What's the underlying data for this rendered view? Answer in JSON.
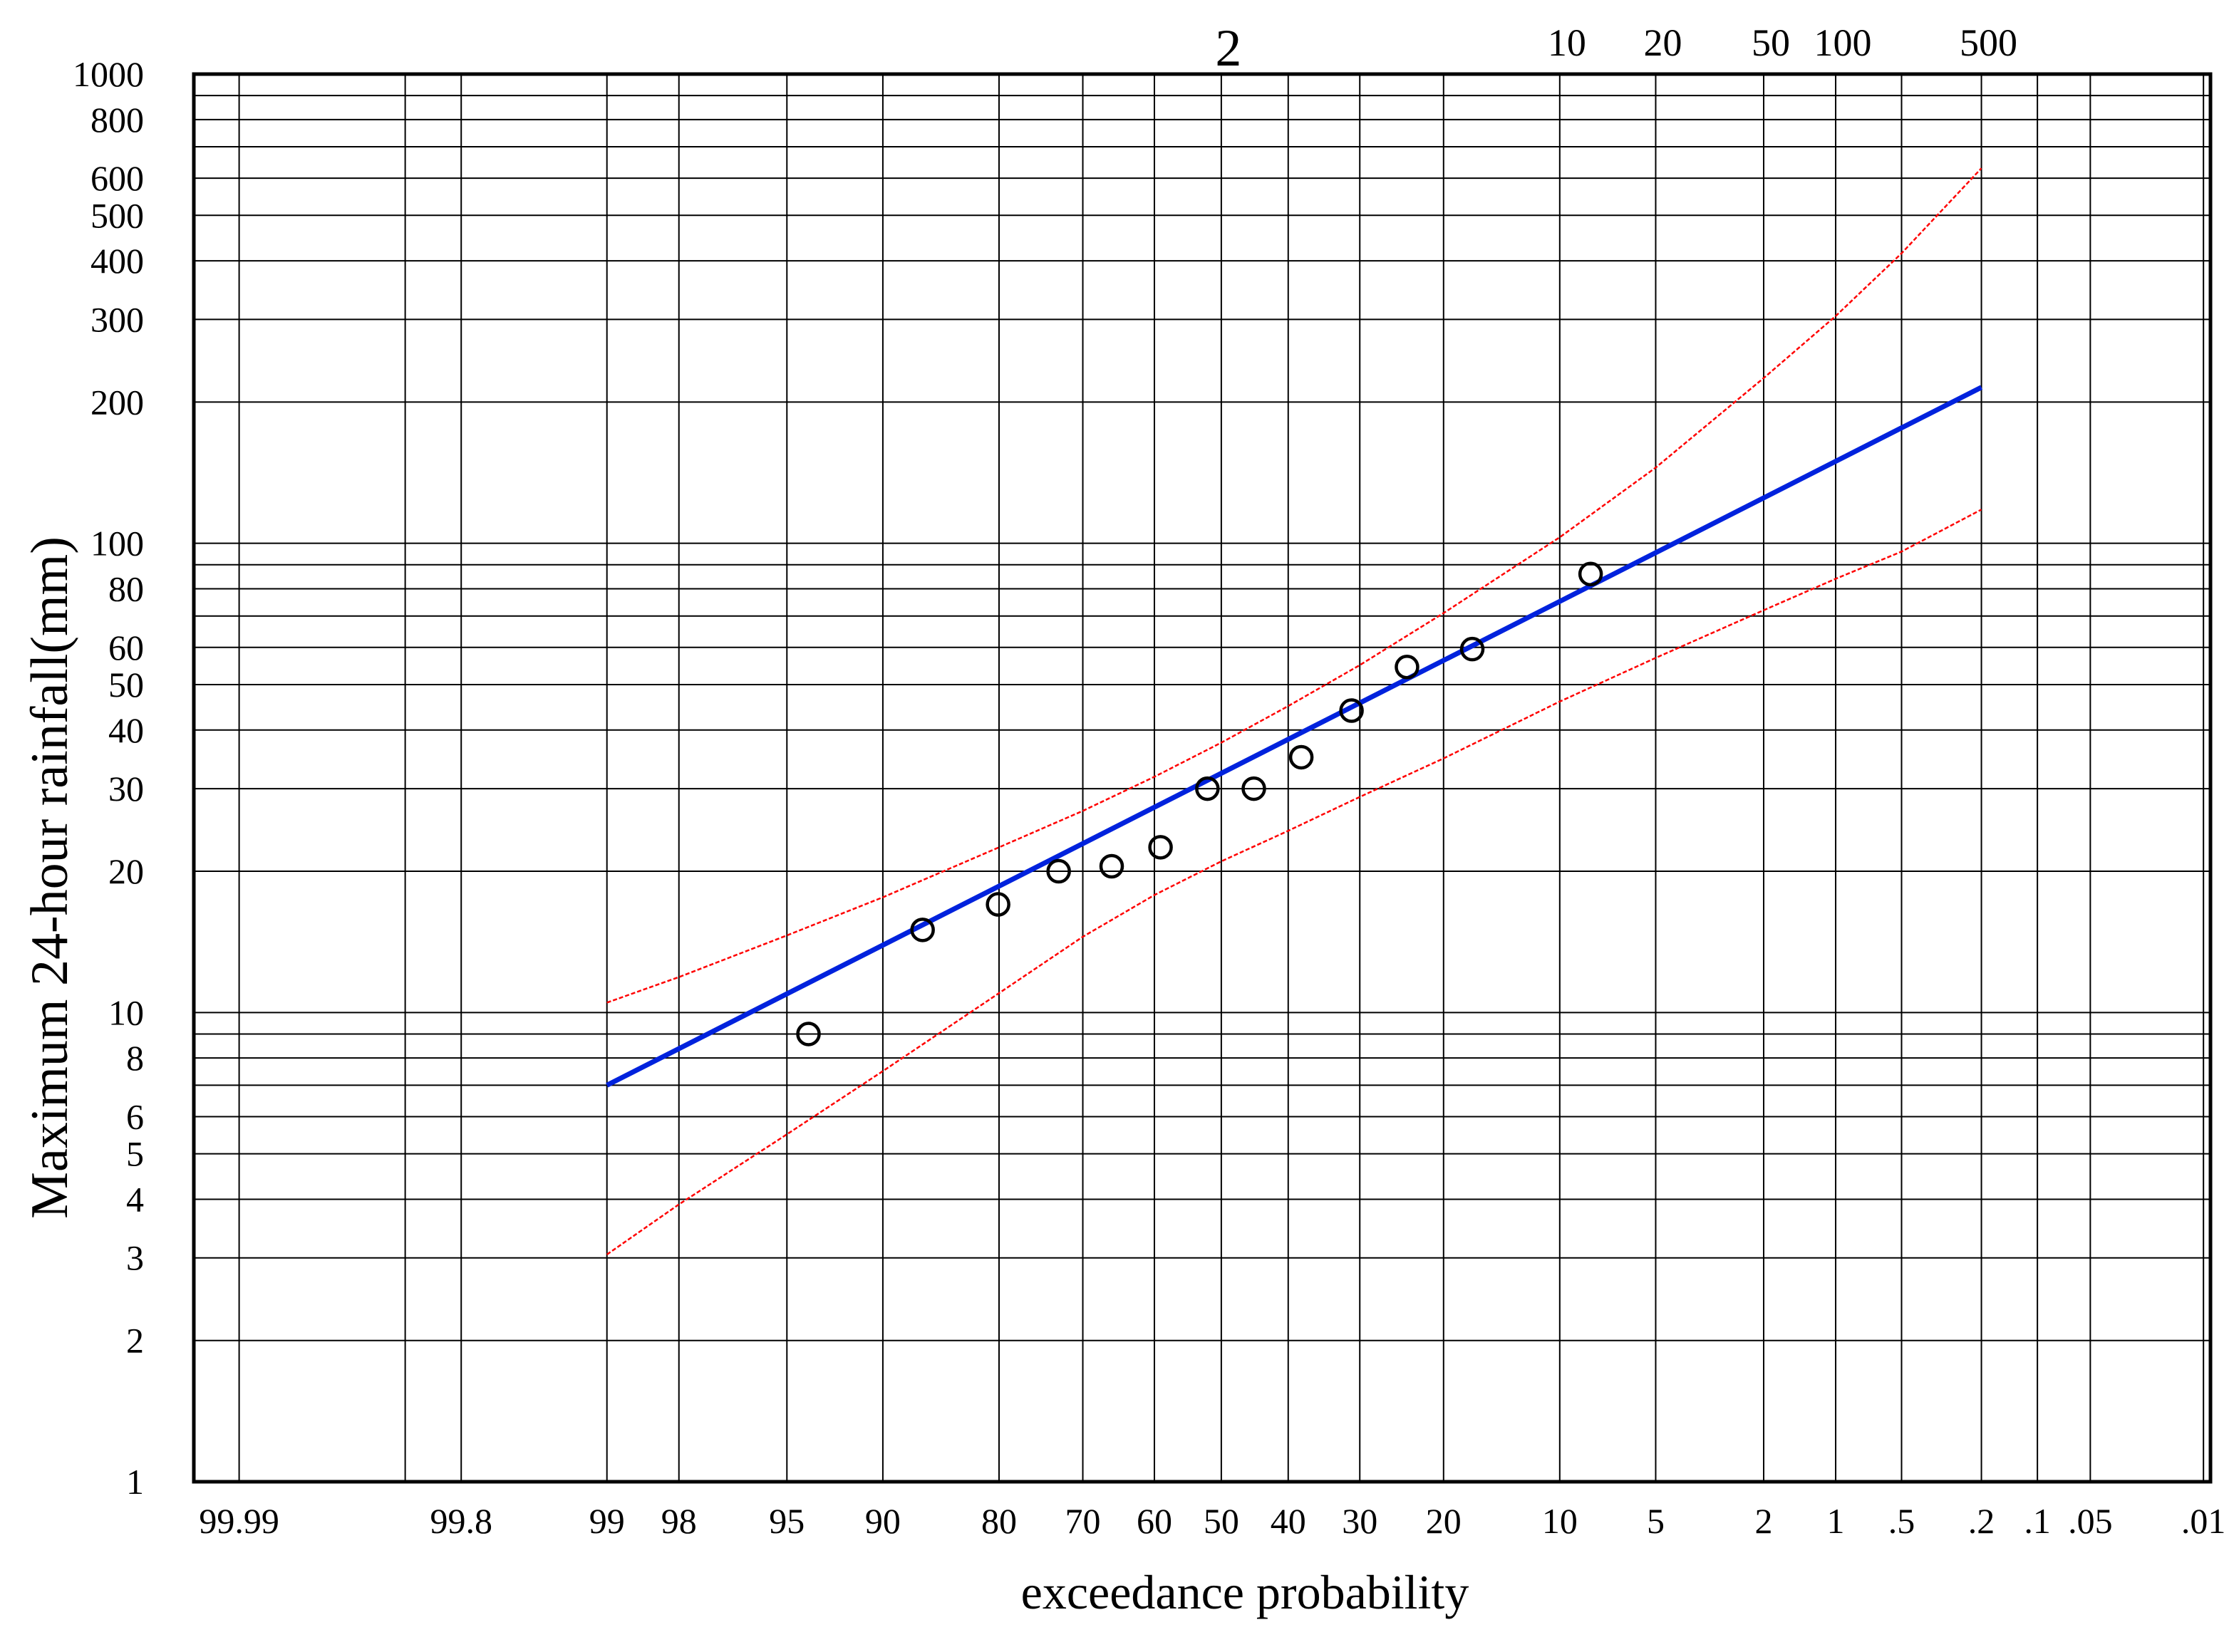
{
  "chart_data": {
    "type": "scatter",
    "scale": "log-normal probability paper",
    "xlabel": "exceedance probability",
    "ylabel": "Maximum 24-hour rainfall(mm)",
    "x_axis": "exceedance probability (%)",
    "y_axis_type": "log",
    "ylim": [
      1,
      1000
    ],
    "xlim_percent": [
      99.995,
      0.009
    ],
    "grid": true,
    "colors": {
      "fit": "#0022dd",
      "confidence": "#ff0000",
      "points": "#000000",
      "grid": "#000000"
    },
    "y_tick_labels": [
      "1000",
      "800",
      "600",
      "500",
      "400",
      "300",
      "200",
      "100",
      "80",
      "60",
      "50",
      "40",
      "30",
      "20",
      "10",
      "8",
      "6",
      "5",
      "4",
      "3",
      "2",
      "1"
    ],
    "y_ticks": [
      1000,
      800,
      600,
      500,
      400,
      300,
      200,
      100,
      80,
      60,
      50,
      40,
      30,
      20,
      10,
      8,
      6,
      5,
      4,
      3,
      2,
      1
    ],
    "y_minor_grid": [
      900,
      700,
      90,
      70,
      9,
      7
    ],
    "x_tick_labels": [
      "99.99",
      "99.8",
      "99",
      "98",
      "95",
      "90",
      "80",
      "70",
      "60",
      "50",
      "40",
      "30",
      "20",
      "10",
      "5",
      "2",
      "1",
      ".5",
      ".2",
      ".1",
      ".05",
      ".01"
    ],
    "x_ticks": [
      99.99,
      99.8,
      99,
      98,
      95,
      90,
      80,
      70,
      60,
      50,
      40,
      30,
      20,
      10,
      5,
      2,
      1,
      0.5,
      0.2,
      0.1,
      0.05,
      0.01
    ],
    "x_extra_grid": [
      99.9
    ],
    "return_period_labels": [
      "2",
      "10",
      "20",
      "50",
      "100",
      "500"
    ],
    "return_periods": [
      2,
      10,
      20,
      50,
      100,
      500
    ],
    "observed": {
      "exceedance_percent": [
        94.1,
        87.1,
        80.1,
        73.1,
        66.1,
        59.1,
        52.1,
        45.1,
        38.1,
        31.1,
        24.1,
        17.1,
        8.1
      ],
      "rainfall_mm": [
        9.0,
        15.0,
        17.0,
        20.0,
        20.5,
        22.5,
        30.0,
        30.0,
        35.0,
        44.0,
        54.5,
        59.5,
        86.0
      ]
    },
    "fitted_line": {
      "exceedance_percent": [
        99,
        0.2
      ],
      "rainfall_mm": [
        7,
        215
      ]
    },
    "upper_confidence": {
      "exceedance_percent": [
        99,
        98,
        95,
        90,
        80,
        70,
        60,
        50,
        40,
        30,
        20,
        10,
        5,
        2,
        1,
        0.5,
        0.2
      ],
      "rainfall_mm": [
        10.5,
        11.9,
        14.6,
        17.6,
        22.5,
        26.9,
        31.8,
        37.6,
        45.0,
        55.0,
        71.0,
        103.0,
        145.0,
        225.0,
        305.0,
        415.0,
        630.0
      ]
    },
    "lower_confidence": {
      "exceedance_percent": [
        99,
        98,
        95,
        90,
        80,
        70,
        60,
        50,
        40,
        30,
        20,
        10,
        5,
        2,
        1,
        0.5,
        0.2
      ],
      "rainfall_mm": [
        3.05,
        3.9,
        5.5,
        7.5,
        11.0,
        14.5,
        17.8,
        21.0,
        24.4,
        28.8,
        34.8,
        46.0,
        57.0,
        72.0,
        84.0,
        96.0,
        118.0
      ]
    }
  }
}
